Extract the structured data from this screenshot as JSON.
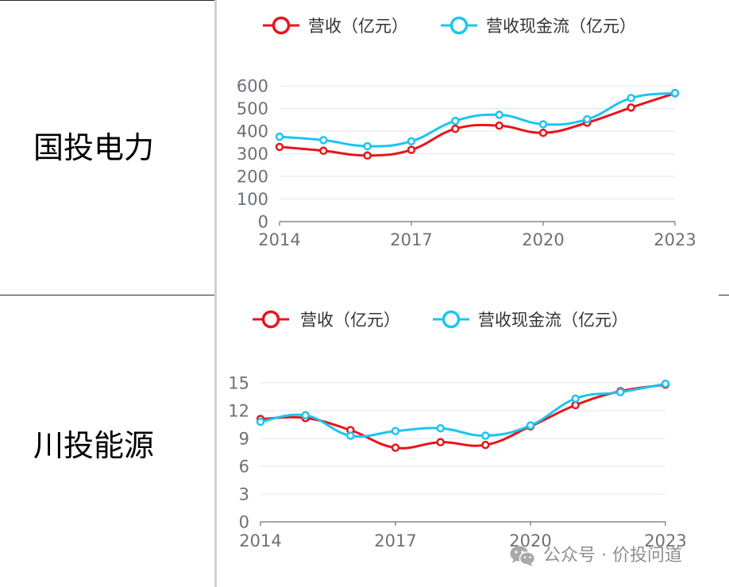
{
  "table": {
    "rows": [
      {
        "label": "国投电力"
      },
      {
        "label": "川投能源"
      }
    ]
  },
  "chart_data": [
    {
      "type": "line",
      "x": [
        2014,
        2015,
        2016,
        2017,
        2018,
        2019,
        2020,
        2021,
        2022,
        2023
      ],
      "xtick_labels": [
        "2014",
        "2017",
        "2020",
        "2023"
      ],
      "yticks": [
        "0",
        "100",
        "200",
        "300",
        "400",
        "500",
        "600"
      ],
      "ylim": [
        0,
        600
      ],
      "grid": true,
      "legend": "top",
      "series": [
        {
          "name": "营收（亿元）",
          "color": "#e8141c",
          "values": [
            330,
            313,
            292,
            317,
            410,
            424,
            392,
            437,
            504,
            567
          ]
        },
        {
          "name": "营收现金流（亿元）",
          "color": "#1bc5f1",
          "values": [
            375,
            360,
            333,
            355,
            445,
            472,
            430,
            452,
            546,
            568
          ]
        }
      ]
    },
    {
      "type": "line",
      "x": [
        2014,
        2015,
        2016,
        2017,
        2018,
        2019,
        2020,
        2021,
        2022,
        2023
      ],
      "xtick_labels": [
        "2014",
        "2017",
        "2020",
        "2023"
      ],
      "yticks": [
        "0",
        "3",
        "6",
        "9",
        "12",
        "15"
      ],
      "ylim": [
        0,
        15
      ],
      "grid": true,
      "legend": "top",
      "series": [
        {
          "name": "营收（亿元）",
          "color": "#e8141c",
          "values": [
            11.1,
            11.2,
            9.9,
            8.0,
            8.6,
            8.3,
            10.3,
            12.6,
            14.1,
            14.8
          ]
        },
        {
          "name": "营收现金流（亿元）",
          "color": "#1bc5f1",
          "values": [
            10.8,
            11.5,
            9.3,
            9.8,
            10.1,
            9.3,
            10.4,
            13.3,
            14.0,
            14.9
          ]
        }
      ]
    }
  ],
  "watermark": {
    "text": "公众号 · 价投问道",
    "icon": "wechat-icon",
    "color": "#8f8f8f"
  }
}
